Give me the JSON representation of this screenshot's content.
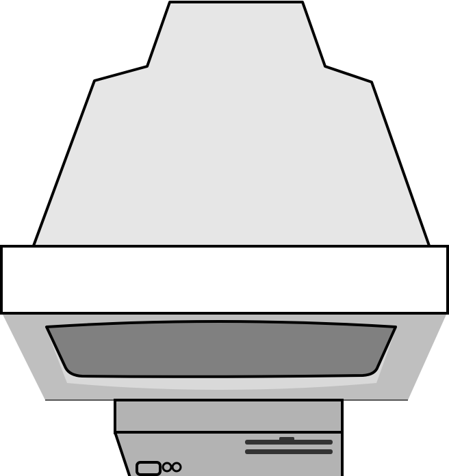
{
  "illustration": {
    "subject": "computer-monitor-icon",
    "colors": {
      "outline": "#000000",
      "back_shell": "#e6e6e6",
      "top_band": "#ffffff",
      "bezel": "#bfbfbf",
      "screen": "#808080",
      "screen_rim": "#d9d9d9",
      "base": "#b3b3b3",
      "vent": "#333333"
    }
  }
}
